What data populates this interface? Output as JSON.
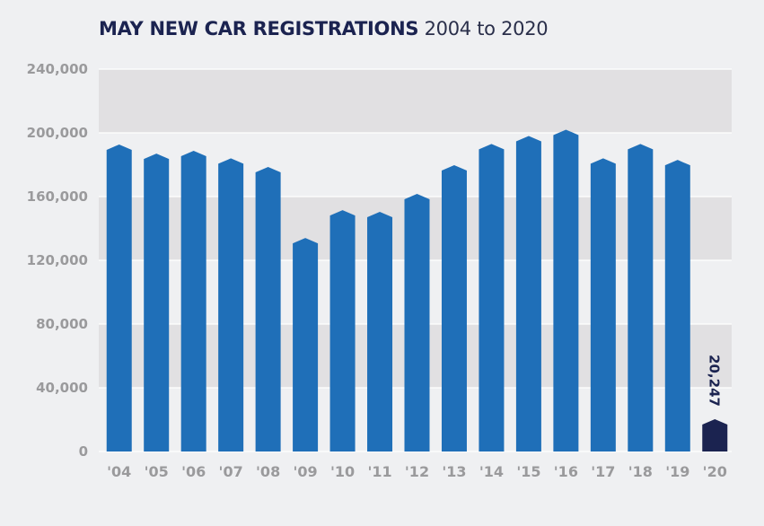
{
  "chart_data": {
    "type": "bar",
    "title": "MAY NEW CAR REGISTRATIONS",
    "subtitle": "2004 to 2020",
    "xlabel": "",
    "ylabel": "",
    "categories": [
      "'04",
      "'05",
      "'06",
      "'07",
      "'08",
      "'09",
      "'10",
      "'11",
      "'12",
      "'13",
      "'14",
      "'15",
      "'16",
      "'17",
      "'18",
      "'19",
      "'20"
    ],
    "values": [
      192700,
      187000,
      188700,
      184000,
      178600,
      134000,
      151500,
      150400,
      161700,
      179700,
      193000,
      198000,
      202000,
      184000,
      193000,
      183000,
      20247
    ],
    "highlight_index": 16,
    "data_labels": [
      {
        "index": 16,
        "text": "20,247"
      }
    ],
    "ylim": [
      0,
      240000
    ],
    "yticks": [
      0,
      40000,
      80000,
      120000,
      160000,
      200000,
      240000
    ],
    "ytick_labels": [
      "0",
      "40,000",
      "80,000",
      "120,000",
      "160,000",
      "200,000",
      "240,000"
    ],
    "grid": true,
    "colors": {
      "bar": "#1f6fb8",
      "highlight": "#1b2350",
      "band": "#e1e0e2",
      "background": "#eff0f2",
      "tick": "#9a9a9c"
    }
  }
}
